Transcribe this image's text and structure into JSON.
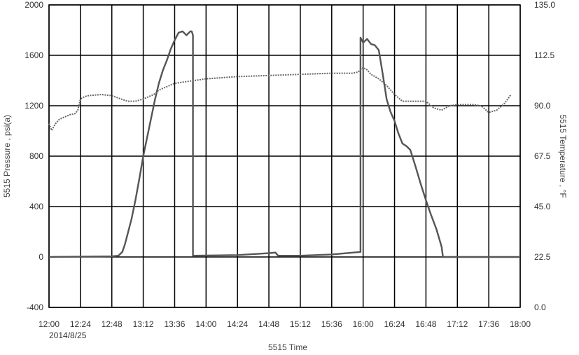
{
  "chart_data": {
    "type": "line",
    "title": "",
    "xlabel": "5515 Time",
    "ylabel": "5515 Pressure , psi(a)",
    "y2label": "5515 Temperature , °F",
    "x_start_date": "2014/8/25",
    "x_ticks": [
      "12:00",
      "12:24",
      "12:48",
      "13:12",
      "13:36",
      "14:00",
      "14:24",
      "14:48",
      "15:12",
      "15:36",
      "16:00",
      "16:24",
      "16:48",
      "17:12",
      "17:36",
      "18:00"
    ],
    "y_ticks": [
      "2000",
      "1600",
      "1200",
      "800",
      "400",
      "0",
      "-400"
    ],
    "y2_ticks": [
      "135.0",
      "112.5",
      "90.0",
      "67.5",
      "45.0",
      "22.5",
      "0.0"
    ],
    "xlim": [
      "12:00",
      "18:00"
    ],
    "ylim": [
      -400,
      2000
    ],
    "y2lim": [
      0,
      135
    ],
    "grid": true,
    "series": [
      {
        "axis": "left",
        "style": "solid",
        "color": "#555555",
        "points": [
          [
            "12:00",
            0
          ],
          [
            "12:48",
            5
          ],
          [
            "12:53",
            10
          ],
          [
            "12:56",
            40
          ],
          [
            "12:58",
            100
          ],
          [
            "13:00",
            180
          ],
          [
            "13:03",
            300
          ],
          [
            "13:06",
            450
          ],
          [
            "13:09",
            620
          ],
          [
            "13:12",
            800
          ],
          [
            "13:15",
            950
          ],
          [
            "13:18",
            1100
          ],
          [
            "13:21",
            1250
          ],
          [
            "13:24",
            1380
          ],
          [
            "13:27",
            1480
          ],
          [
            "13:30",
            1560
          ],
          [
            "13:33",
            1650
          ],
          [
            "13:36",
            1720
          ],
          [
            "13:39",
            1780
          ],
          [
            "13:42",
            1790
          ],
          [
            "13:45",
            1760
          ],
          [
            "13:48",
            1790
          ],
          [
            "13:49",
            1790
          ],
          [
            "13:50",
            1760
          ],
          [
            "13:50",
            10
          ],
          [
            "14:24",
            15
          ],
          [
            "14:48",
            30
          ],
          [
            "14:53",
            35
          ],
          [
            "14:55",
            10
          ],
          [
            "15:12",
            10
          ],
          [
            "15:36",
            20
          ],
          [
            "15:58",
            40
          ],
          [
            "15:58",
            1740
          ],
          [
            "16:00",
            1700
          ],
          [
            "16:03",
            1730
          ],
          [
            "16:06",
            1690
          ],
          [
            "16:09",
            1680
          ],
          [
            "16:12",
            1640
          ],
          [
            "16:15",
            1450
          ],
          [
            "16:18",
            1250
          ],
          [
            "16:21",
            1150
          ],
          [
            "16:24",
            1080
          ],
          [
            "16:27",
            980
          ],
          [
            "16:30",
            900
          ],
          [
            "16:33",
            880
          ],
          [
            "16:36",
            850
          ],
          [
            "16:40",
            720
          ],
          [
            "16:44",
            580
          ],
          [
            "16:48",
            450
          ],
          [
            "16:52",
            330
          ],
          [
            "16:56",
            220
          ],
          [
            "17:00",
            80
          ],
          [
            "17:01",
            0
          ],
          [
            "17:36",
            0
          ],
          [
            "18:00",
            0
          ]
        ]
      },
      {
        "axis": "right",
        "style": "dotted",
        "color": "#666666",
        "points": [
          [
            "12:00",
            82
          ],
          [
            "12:02",
            79
          ],
          [
            "12:05",
            82
          ],
          [
            "12:08",
            84
          ],
          [
            "12:12",
            85
          ],
          [
            "12:16",
            86
          ],
          [
            "12:20",
            86.5
          ],
          [
            "12:22",
            88
          ],
          [
            "12:24",
            93
          ],
          [
            "12:27",
            94
          ],
          [
            "12:30",
            94.5
          ],
          [
            "12:40",
            95
          ],
          [
            "12:48",
            94.5
          ],
          [
            "12:55",
            93
          ],
          [
            "13:00",
            92
          ],
          [
            "13:06",
            92
          ],
          [
            "13:12",
            93
          ],
          [
            "13:20",
            95
          ],
          [
            "13:24",
            97
          ],
          [
            "13:36",
            100
          ],
          [
            "14:00",
            102
          ],
          [
            "14:24",
            103
          ],
          [
            "14:48",
            103.5
          ],
          [
            "15:12",
            104
          ],
          [
            "15:36",
            104.5
          ],
          [
            "15:52",
            104.5
          ],
          [
            "15:56",
            105
          ],
          [
            "16:00",
            107
          ],
          [
            "16:03",
            106
          ],
          [
            "16:06",
            104
          ],
          [
            "16:12",
            102
          ],
          [
            "16:18",
            99
          ],
          [
            "16:24",
            95
          ],
          [
            "16:30",
            92
          ],
          [
            "16:48",
            92
          ],
          [
            "16:54",
            89
          ],
          [
            "17:00",
            88
          ],
          [
            "17:06",
            90
          ],
          [
            "17:12",
            90.5
          ],
          [
            "17:24",
            90.5
          ],
          [
            "17:30",
            90
          ],
          [
            "17:36",
            87
          ],
          [
            "17:42",
            88
          ],
          [
            "17:48",
            91
          ],
          [
            "17:53",
            95
          ]
        ]
      }
    ]
  }
}
